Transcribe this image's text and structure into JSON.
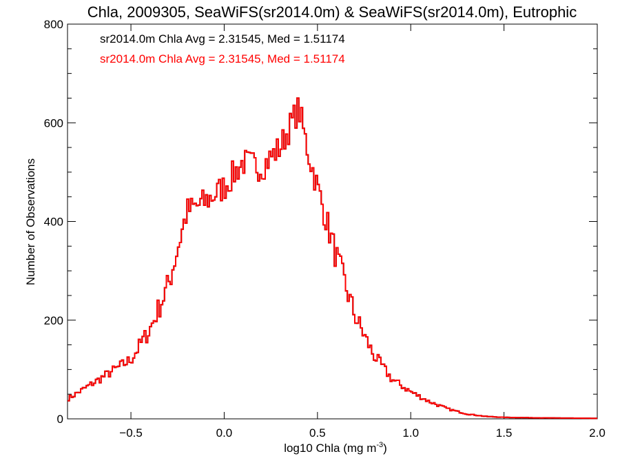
{
  "chart_data": {
    "type": "histogram",
    "title": "Chla, 2009305, SeaWiFS(sr2014.0m) & SeaWiFS(sr2014.0m), Eutrophic",
    "xlabel_prefix": "log10 Chla (mg m",
    "xlabel_sup": "-3",
    "xlabel_suffix": ")",
    "ylabel": "Number of Observations",
    "xlim": [
      -0.84,
      2.0
    ],
    "ylim": [
      0,
      800
    ],
    "xticks": [
      -0.5,
      0.0,
      0.5,
      1.0,
      1.5,
      2.0
    ],
    "xtick_labels": [
      "−0.5",
      "0.0",
      "0.5",
      "1.0",
      "1.5",
      "2.0"
    ],
    "yticks": [
      0,
      200,
      400,
      600,
      800
    ],
    "ytick_labels": [
      "0",
      "200",
      "400",
      "600",
      "800"
    ],
    "grid": false,
    "annotations": [
      {
        "text": "sr2014.0m Chla Avg = 2.31545, Med = 1.51174",
        "color": "#000000"
      },
      {
        "text": "sr2014.0m Chla Avg = 2.31545, Med = 1.51174",
        "color": "#ff0000"
      }
    ],
    "series": [
      {
        "color": "#000000"
      },
      {
        "color": "#ff0000"
      }
    ],
    "x_points": [
      -0.84,
      -0.5,
      -0.4,
      -0.3,
      -0.2,
      -0.1,
      0.0,
      0.1,
      0.2,
      0.3,
      0.4,
      0.45,
      0.5,
      0.6,
      0.7,
      0.8,
      0.9,
      1.0,
      1.1,
      1.2,
      1.3,
      1.4,
      1.5,
      1.7,
      2.0
    ],
    "y_points": [
      40,
      120,
      180,
      270,
      420,
      440,
      470,
      520,
      510,
      550,
      630,
      540,
      470,
      330,
      210,
      130,
      80,
      55,
      35,
      20,
      10,
      5,
      3,
      2,
      1
    ],
    "bin_width": 0.01
  }
}
